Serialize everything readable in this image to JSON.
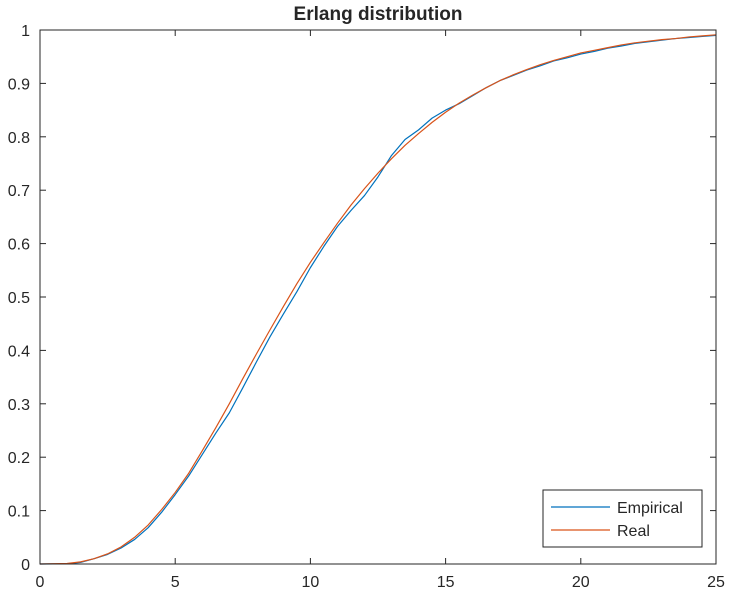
{
  "chart_data": {
    "type": "line",
    "title": "Erlang distribution",
    "xlabel": "",
    "ylabel": "",
    "xlim": [
      0,
      25
    ],
    "ylim": [
      0,
      1
    ],
    "xticks": [
      0,
      5,
      10,
      15,
      20,
      25
    ],
    "yticks": [
      0,
      0.1,
      0.2,
      0.3,
      0.4,
      0.5,
      0.6,
      0.7,
      0.8,
      0.9,
      1
    ],
    "xtick_labels": [
      "0",
      "5",
      "10",
      "15",
      "20",
      "25"
    ],
    "ytick_labels": [
      "0",
      "0.1",
      "0.2",
      "0.3",
      "0.4",
      "0.5",
      "0.6",
      "0.7",
      "0.8",
      "0.9",
      "1"
    ],
    "grid": false,
    "legend_position": "bottom-right",
    "series": [
      {
        "name": "Empirical",
        "color": "#0072BD",
        "x": [
          0,
          1,
          1.5,
          2,
          2.5,
          3,
          3.5,
          4,
          4.5,
          5,
          5.5,
          6,
          6.5,
          7,
          7.5,
          8,
          8.5,
          9,
          9.5,
          10,
          10.5,
          11,
          11.5,
          12,
          12.5,
          13,
          13.5,
          14,
          14.5,
          15,
          15.5,
          16,
          16.5,
          17,
          17.5,
          18,
          18.5,
          19,
          19.5,
          20,
          20.5,
          21,
          21.5,
          22,
          22.5,
          23,
          23.5,
          24,
          24.5,
          25
        ],
        "y": [
          0,
          0.0005,
          0.003,
          0.01,
          0.018,
          0.03,
          0.046,
          0.068,
          0.097,
          0.13,
          0.165,
          0.205,
          0.245,
          0.283,
          0.33,
          0.378,
          0.425,
          0.468,
          0.51,
          0.555,
          0.595,
          0.632,
          0.662,
          0.69,
          0.725,
          0.765,
          0.795,
          0.813,
          0.835,
          0.85,
          0.862,
          0.877,
          0.892,
          0.905,
          0.915,
          0.925,
          0.933,
          0.942,
          0.948,
          0.955,
          0.96,
          0.966,
          0.97,
          0.975,
          0.978,
          0.981,
          0.984,
          0.986,
          0.988,
          0.99
        ]
      },
      {
        "name": "Real",
        "color": "#D95319",
        "x": [
          0,
          1,
          1.5,
          2,
          2.5,
          3,
          3.5,
          4,
          4.5,
          5,
          5.5,
          6,
          6.5,
          7,
          7.5,
          8,
          8.5,
          9,
          9.5,
          10,
          10.5,
          11,
          11.5,
          12,
          12.5,
          13,
          13.5,
          14,
          14.5,
          15,
          15.5,
          16,
          16.5,
          17,
          17.5,
          18,
          18.5,
          19,
          19.5,
          20,
          20.5,
          21,
          21.5,
          22,
          22.5,
          23,
          23.5,
          24,
          24.5,
          25
        ],
        "y": [
          0,
          0.001,
          0.004,
          0.01,
          0.019,
          0.032,
          0.05,
          0.073,
          0.102,
          0.134,
          0.17,
          0.212,
          0.255,
          0.3,
          0.347,
          0.393,
          0.438,
          0.482,
          0.525,
          0.565,
          0.602,
          0.638,
          0.672,
          0.703,
          0.732,
          0.759,
          0.784,
          0.806,
          0.827,
          0.846,
          0.863,
          0.878,
          0.892,
          0.905,
          0.916,
          0.926,
          0.935,
          0.943,
          0.95,
          0.957,
          0.962,
          0.967,
          0.972,
          0.976,
          0.979,
          0.982,
          0.984,
          0.987,
          0.989,
          0.991
        ]
      }
    ]
  }
}
